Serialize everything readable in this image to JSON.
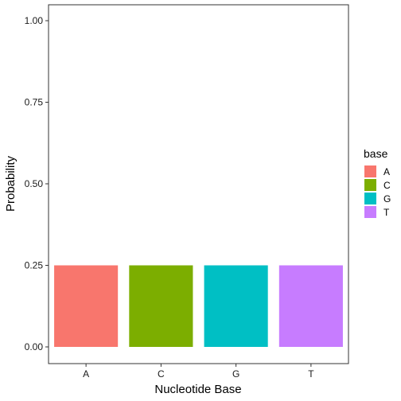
{
  "chart_data": {
    "type": "bar",
    "categories": [
      "A",
      "C",
      "G",
      "T"
    ],
    "values": [
      0.25,
      0.25,
      0.25,
      0.25
    ],
    "colors": [
      "#F8766D",
      "#7CAE00",
      "#00BFC4",
      "#C77CFF"
    ],
    "xlabel": "Nucleotide Base",
    "ylabel": "Probability",
    "ylim": [
      0,
      1
    ],
    "yticks": [
      0,
      0.25,
      0.5,
      0.75,
      1
    ],
    "ytick_labels": [
      "0.00",
      "0.25",
      "0.50",
      "0.75",
      "1.00"
    ],
    "grid": false,
    "legend": {
      "title": "base",
      "position": "right",
      "entries": [
        "A",
        "C",
        "G",
        "T"
      ]
    }
  }
}
